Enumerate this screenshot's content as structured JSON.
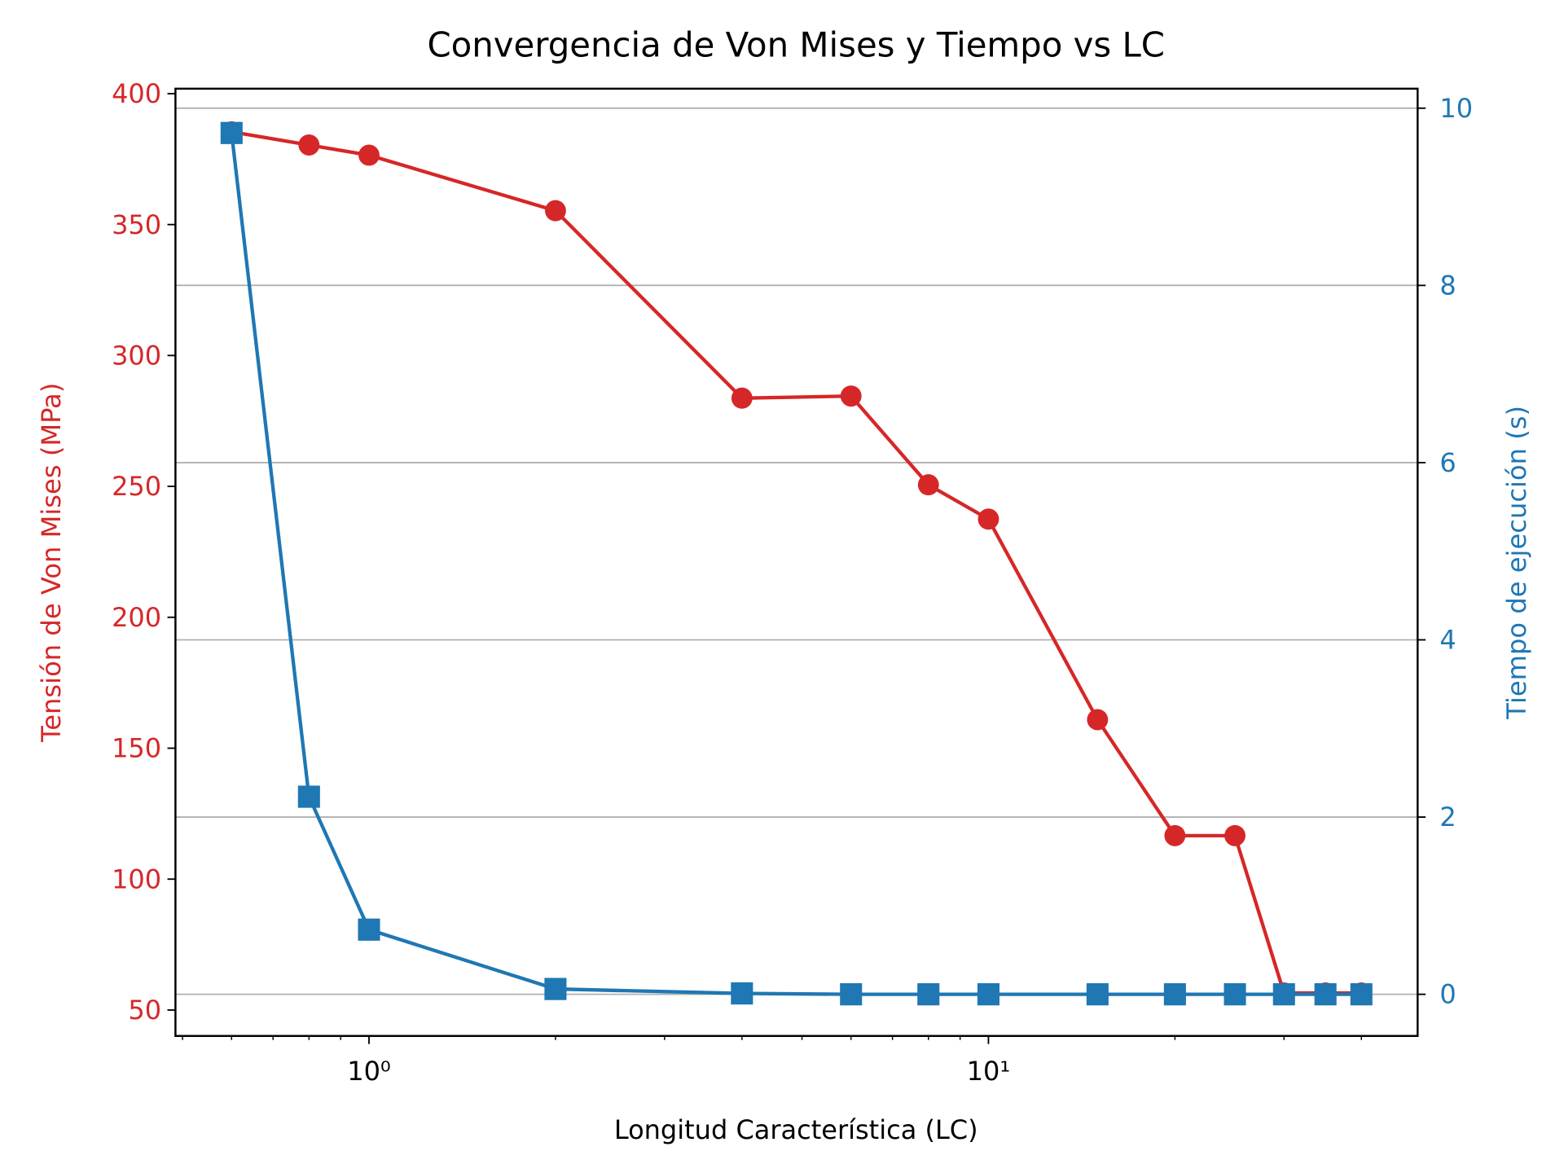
{
  "chart_data": {
    "type": "line",
    "title": "Convergencia de Von Mises y Tiempo vs LC",
    "x_label": "Longitud Característica (LC)",
    "y_label": "Tensión de Von Mises (MPa)",
    "y2_label": "Tiempo de ejecución (s)",
    "x": [
      0.6,
      0.8,
      1,
      2,
      4,
      6,
      8,
      10,
      15,
      20,
      25,
      30,
      35,
      40
    ],
    "xscale": "log",
    "xlim": [
      0.487,
      49.3
    ],
    "xticks": [
      {
        "value": 1,
        "label": "10⁰"
      },
      {
        "value": 10,
        "label": "10¹"
      }
    ],
    "xminorticks": [
      0.5,
      0.6,
      0.7,
      0.8,
      0.9,
      2,
      3,
      4,
      5,
      6,
      7,
      8,
      9,
      20,
      30,
      40
    ],
    "ylim": [
      40.1,
      401.9
    ],
    "yticks": [
      50,
      100,
      150,
      200,
      250,
      300,
      350,
      400
    ],
    "y2lim": [
      -0.47,
      10.22
    ],
    "y2ticks": [
      0,
      2,
      4,
      6,
      8,
      10
    ],
    "grid": true,
    "grid_axis": "y2",
    "series": [
      {
        "name": "Tensión de Von Mises",
        "color": "#d62728",
        "marker": "circle",
        "values": [
          385.4,
          380.4,
          376.5,
          355.3,
          283.7,
          284.5,
          250.6,
          237.5,
          160.9,
          116.6,
          116.6,
          56.5,
          56.5,
          56.5
        ]
      },
      {
        "name": "Tiempo de ejecución",
        "color": "#1f77b4",
        "marker": "square",
        "axis": "y2",
        "values": [
          9.72,
          2.23,
          0.73,
          0.06,
          0.01,
          0,
          0,
          0,
          0,
          0,
          0,
          0,
          0,
          0
        ]
      }
    ]
  }
}
